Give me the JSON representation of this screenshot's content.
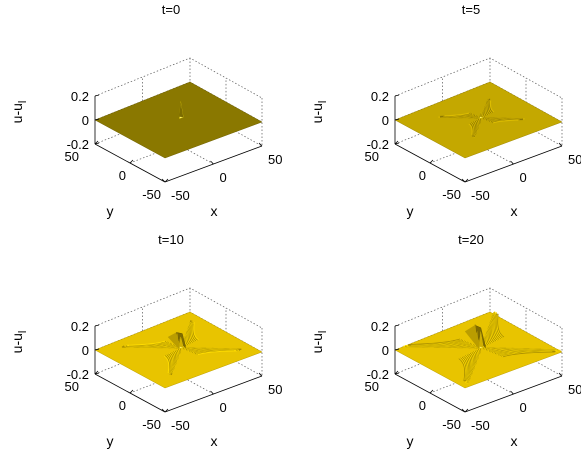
{
  "chart_data": [
    {
      "type": "surface3d",
      "title": "t=0",
      "xlabel": "x",
      "ylabel": "y",
      "zlabel": "u-u",
      "zlabel_subscript": "l",
      "xlim": [
        -50,
        50
      ],
      "ylim": [
        -50,
        50
      ],
      "zlim": [
        -0.2,
        0.2
      ],
      "xticks": [
        "-50",
        "0",
        "50"
      ],
      "yticks": [
        "50",
        "0",
        "-50"
      ],
      "zticks": [
        "0.2",
        "0",
        "-0.2"
      ],
      "surface_color": "#8a7800",
      "features": {
        "peak": 0.06,
        "ripples": 0,
        "ridge": 0
      }
    },
    {
      "type": "surface3d",
      "title": "t=5",
      "xlabel": "x",
      "ylabel": "y",
      "zlabel": "u-u",
      "zlabel_subscript": "l",
      "xlim": [
        -50,
        50
      ],
      "ylim": [
        -50,
        50
      ],
      "zlim": [
        -0.2,
        0.2
      ],
      "xticks": [
        "-50",
        "0",
        "50"
      ],
      "yticks": [
        "50",
        "0",
        "-50"
      ],
      "zticks": [
        "0.2",
        "0",
        "-0.2"
      ],
      "surface_color": "#c4a800",
      "features": {
        "peak": 0.02,
        "ripples": 0.2,
        "ridge": 0
      }
    },
    {
      "type": "surface3d",
      "title": "t=10",
      "xlabel": "x",
      "ylabel": "y",
      "zlabel": "u-u",
      "zlabel_subscript": "l",
      "xlim": [
        -50,
        50
      ],
      "ylim": [
        -50,
        50
      ],
      "zlim": [
        -0.2,
        0.2
      ],
      "xticks": [
        "-50",
        "0",
        "50"
      ],
      "yticks": [
        "50",
        "0",
        "-50"
      ],
      "zticks": [
        "0.2",
        "0",
        "-0.2"
      ],
      "surface_color": "#e8c400",
      "features": {
        "peak": 0.04,
        "ripples": 0.45,
        "ridge": 0.6
      }
    },
    {
      "type": "surface3d",
      "title": "t=20",
      "xlabel": "x",
      "ylabel": "y",
      "zlabel": "u-u",
      "zlabel_subscript": "l",
      "xlim": [
        -50,
        50
      ],
      "ylim": [
        -50,
        50
      ],
      "zlim": [
        -0.2,
        0.2
      ],
      "xticks": [
        "-50",
        "0",
        "50"
      ],
      "yticks": [
        "50",
        "0",
        "-50"
      ],
      "zticks": [
        "0.2",
        "0",
        "-0.2"
      ],
      "surface_color": "#e8c400",
      "features": {
        "peak": 0.06,
        "ripples": 0.75,
        "ridge": 1.0
      }
    }
  ]
}
